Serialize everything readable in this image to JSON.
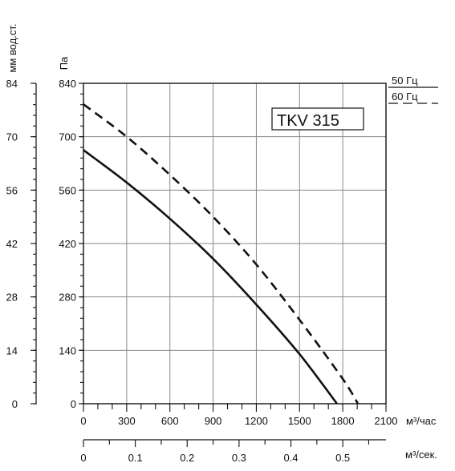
{
  "chart_data": {
    "type": "line",
    "title": "TKV 315",
    "x_units_primary": "м³/час",
    "x_units_secondary": "м³/сек.",
    "y_units_left_outer": "мм вод.ст.",
    "y_units_left_inner": "Па",
    "xlim": [
      0,
      2100
    ],
    "ylim": [
      0,
      840
    ],
    "x_ticks": [
      "0",
      "300",
      "600",
      "900",
      "1200",
      "1500",
      "1800",
      "2100"
    ],
    "y_ticks_pa": [
      "0",
      "140",
      "280",
      "420",
      "560",
      "700",
      "840"
    ],
    "y_ticks_mm": [
      "0",
      "14",
      "28",
      "42",
      "56",
      "70",
      "84"
    ],
    "secondary_x_ticks": [
      "0",
      "0.1",
      "0.2",
      "0.3",
      "0.4",
      "0.5"
    ],
    "legend": [
      {
        "label": "50 Гц",
        "style": "solid"
      },
      {
        "label": "60 Гц",
        "style": "dashed"
      }
    ],
    "series": [
      {
        "name": "50 Гц",
        "style": "solid",
        "x": [
          0,
          300,
          600,
          900,
          1200,
          1500,
          1760
        ],
        "y": [
          665,
          580,
          485,
          380,
          260,
          130,
          0
        ]
      },
      {
        "name": "60 Гц",
        "style": "dashed",
        "x": [
          0,
          300,
          600,
          900,
          1200,
          1500,
          1800,
          1905
        ],
        "y": [
          785,
          700,
          600,
          490,
          365,
          220,
          65,
          0
        ]
      }
    ],
    "grid": true
  }
}
